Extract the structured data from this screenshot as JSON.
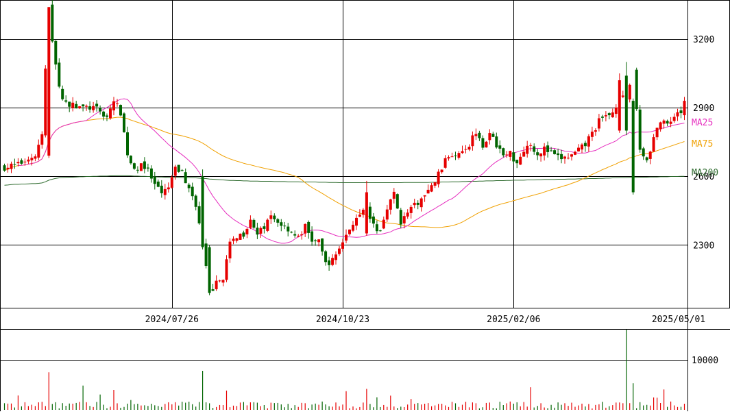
{
  "chart_data": {
    "type": "candlestick",
    "colors": {
      "up": "#e60000",
      "down": "#006400",
      "ma25": "#e62ebf",
      "ma75": "#f0a000",
      "ma200": "#2e6b2e",
      "grid": "#000000",
      "volume_up": "#e60000",
      "volume_down": "#006400"
    },
    "price_axis": {
      "ticks": [
        {
          "value": 3200,
          "label": "3200"
        },
        {
          "value": 2900,
          "label": "2900"
        },
        {
          "value": 2600,
          "label": "2600"
        },
        {
          "value": 2300,
          "label": "2300"
        }
      ],
      "ylim": [
        2025,
        3365
      ]
    },
    "x_axis": {
      "labels": [
        {
          "index": 49,
          "label": "2024/07/26"
        },
        {
          "index": 99,
          "label": "2024/10/23"
        },
        {
          "index": 149,
          "label": "2025/02/06"
        },
        {
          "index": 199,
          "label": "2025/05/01"
        }
      ],
      "count": 200
    },
    "volume_axis": {
      "ticks": [
        {
          "value": 10000,
          "label": "10000"
        }
      ],
      "ylim": [
        0,
        16000
      ]
    },
    "legend": [
      {
        "key": "ma25",
        "label": "MA25"
      },
      {
        "key": "ma75",
        "label": "MA75"
      },
      {
        "key": "ma200",
        "label": "MA200"
      }
    ],
    "candles": [],
    "volume": [],
    "ma25": [],
    "ma75": [],
    "ma200": []
  }
}
